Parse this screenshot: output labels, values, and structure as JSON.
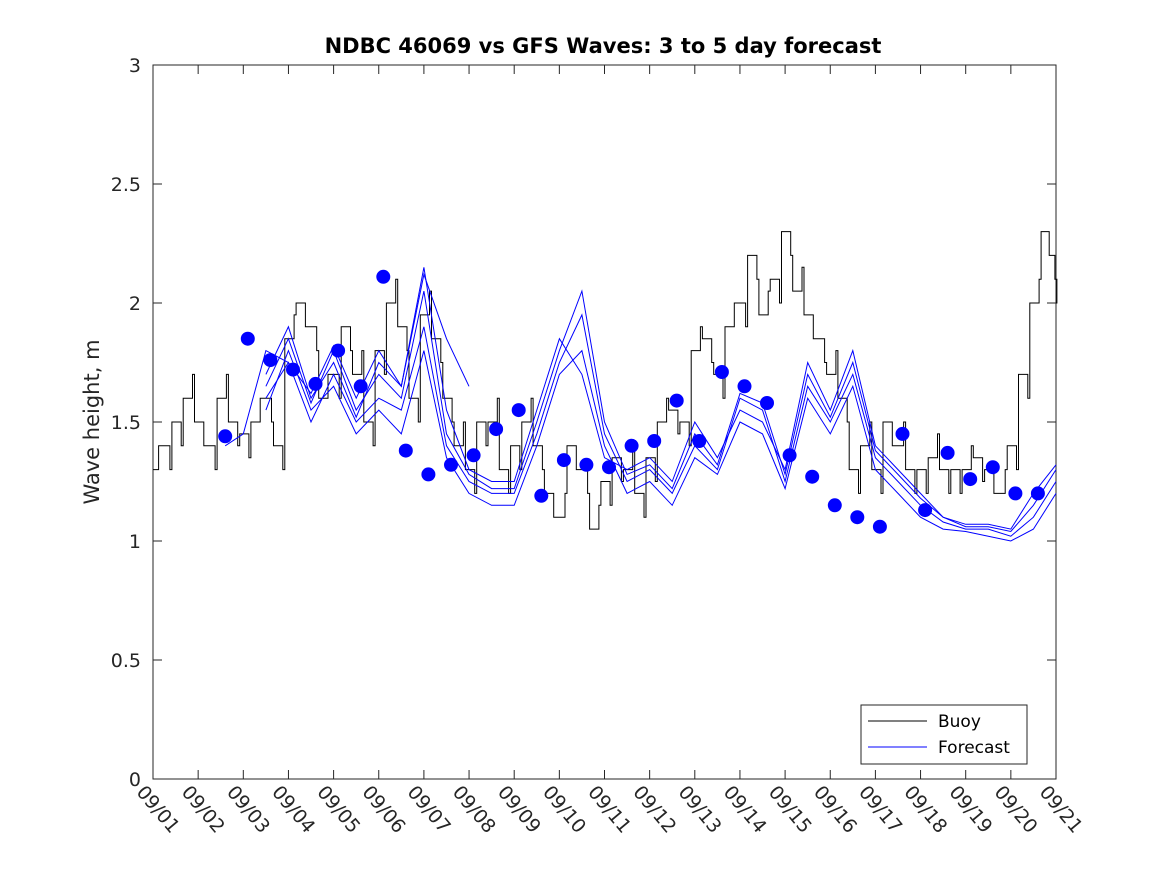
{
  "chart_data": {
    "type": "line",
    "title": "NDBC 46069 vs GFS Waves: 3 to 5 day forecast",
    "xlabel": "",
    "ylabel": "Wave height, m",
    "xlim": [
      0,
      20
    ],
    "ylim": [
      0,
      3
    ],
    "grid": false,
    "x_tick_labels": [
      "09/01",
      "09/02",
      "09/03",
      "09/04",
      "09/05",
      "09/06",
      "09/07",
      "09/08",
      "09/09",
      "09/10",
      "09/11",
      "09/12",
      "09/13",
      "09/14",
      "09/15",
      "09/16",
      "09/17",
      "09/18",
      "09/19",
      "09/20",
      "09/21"
    ],
    "y_ticks": [
      0,
      0.5,
      1,
      1.5,
      2,
      2.5,
      3
    ],
    "y_tick_labels": [
      "0",
      "0.5",
      "1",
      "1.5",
      "2",
      "2.5",
      "3"
    ],
    "legend": {
      "position": "bottom-right",
      "entries": [
        {
          "label": "Buoy"
        },
        {
          "label": "Forecast"
        }
      ]
    },
    "colors": {
      "buoy": "#000000",
      "forecast": "#0000ff",
      "axis": "#262626"
    },
    "series": [
      {
        "name": "Buoy",
        "x": [
          0,
          0.25,
          0.5,
          0.75,
          1,
          1.25,
          1.5,
          1.75,
          2,
          2.25,
          2.5,
          2.75,
          3,
          3.25,
          3.5,
          3.75,
          4,
          4.25,
          4.5,
          4.75,
          5,
          5.25,
          5.5,
          5.75,
          6,
          6.25,
          6.5,
          6.75,
          7,
          7.25,
          7.5,
          7.75,
          8,
          8.25,
          8.5,
          8.75,
          9,
          9.25,
          9.5,
          9.75,
          10,
          10.25,
          10.5,
          10.75,
          11,
          11.25,
          11.5,
          11.75,
          12,
          12.25,
          12.5,
          12.75,
          13,
          13.25,
          13.5,
          13.75,
          14,
          14.25,
          14.5,
          14.75,
          15,
          15.25,
          15.5,
          15.75,
          16,
          16.25,
          16.5,
          16.75,
          17,
          17.25,
          17.5,
          17.75,
          18,
          18.25,
          18.5,
          18.75,
          19,
          19.25,
          19.5,
          19.75,
          19.95,
          20.0
        ],
        "values": [
          1.3,
          1.4,
          1.5,
          1.6,
          1.5,
          1.4,
          1.6,
          1.5,
          1.45,
          1.5,
          1.6,
          1.4,
          1.85,
          2.0,
          1.9,
          1.6,
          1.7,
          1.9,
          1.7,
          1.5,
          1.8,
          2.0,
          1.9,
          1.6,
          1.95,
          1.85,
          1.6,
          1.4,
          1.3,
          1.5,
          1.5,
          1.3,
          1.4,
          1.5,
          1.4,
          1.2,
          1.1,
          1.4,
          1.3,
          1.05,
          1.25,
          1.35,
          1.3,
          1.2,
          1.35,
          1.5,
          1.55,
          1.5,
          1.8,
          1.85,
          1.7,
          1.9,
          2.0,
          2.2,
          1.95,
          2.1,
          2.3,
          2.05,
          1.95,
          1.85,
          1.7,
          1.6,
          1.3,
          1.4,
          1.3,
          1.5,
          1.4,
          1.3,
          1.3,
          1.35,
          1.3,
          1.3,
          1.3,
          1.35,
          1.3,
          1.2,
          1.4,
          1.7,
          2.0,
          2.3,
          2.2,
          2.0
        ]
      },
      {
        "name": "Forecast",
        "runs": [
          {
            "x": [
              1.6,
              2.0,
              2.5,
              3.0,
              3.5,
              4.0,
              4.5,
              5.0,
              5.5,
              6.0,
              6.5,
              7.0
            ],
            "values": [
              1.4,
              1.45,
              1.8,
              1.75,
              1.62,
              1.82,
              1.6,
              1.8,
              1.65,
              2.12,
              1.85,
              1.65
            ]
          },
          {
            "x": [
              2.5,
              3.0,
              3.5,
              4.0,
              4.5,
              5.0,
              5.5,
              6.0,
              6.5,
              7.0,
              7.5,
              8.0,
              8.5,
              9.0,
              9.5,
              10.0,
              10.5,
              11.0,
              11.5,
              12.0,
              12.5,
              13.0,
              13.5,
              14.0,
              14.5,
              15.0,
              15.5,
              16.0,
              16.5,
              17.0,
              17.5,
              18.0,
              18.5,
              19.0,
              19.5,
              20.0
            ],
            "values": [
              1.7,
              1.9,
              1.6,
              1.75,
              1.52,
              1.75,
              1.65,
              2.15,
              1.55,
              1.3,
              1.25,
              1.25,
              1.55,
              1.85,
              1.7,
              1.35,
              1.3,
              1.35,
              1.25,
              1.5,
              1.35,
              1.55,
              1.5,
              1.3,
              1.75,
              1.55,
              1.8,
              1.4,
              1.3,
              1.2,
              1.1,
              1.07,
              1.07,
              1.05,
              1.2,
              1.32
            ]
          },
          {
            "x": [
              2.5,
              3.0,
              3.5,
              4.0,
              4.5,
              5.0,
              5.5,
              6.0,
              6.5,
              7.0,
              7.5,
              8.0,
              8.5,
              9.0,
              9.5,
              10.0,
              10.5,
              11.0,
              11.5,
              12.0,
              12.5,
              13.0,
              13.5,
              14.0,
              14.5,
              15.0,
              15.5,
              16.0,
              16.5,
              17.0,
              17.5,
              18.0,
              18.5,
              19.0,
              19.5,
              20.0
            ],
            "values": [
              1.6,
              1.75,
              1.5,
              1.7,
              1.5,
              1.6,
              1.55,
              1.9,
              1.4,
              1.25,
              1.2,
              1.2,
              1.45,
              1.75,
              1.95,
              1.45,
              1.25,
              1.3,
              1.2,
              1.4,
              1.3,
              1.6,
              1.55,
              1.25,
              1.65,
              1.5,
              1.7,
              1.35,
              1.25,
              1.15,
              1.08,
              1.05,
              1.05,
              1.02,
              1.1,
              1.25
            ]
          },
          {
            "x": [
              2.5,
              3.0,
              3.5,
              4.0,
              4.5,
              5.0,
              5.5,
              6.0,
              6.5,
              7.0,
              7.5,
              8.0,
              8.5,
              9.0,
              9.5,
              10.0,
              10.5,
              11.0,
              11.5,
              12.0,
              12.5,
              13.0,
              13.5,
              14.0,
              14.5,
              15.0,
              15.5,
              16.0,
              16.5,
              17.0,
              17.5,
              18.0,
              18.5,
              19.0,
              19.5,
              20.0
            ],
            "values": [
              1.55,
              1.8,
              1.55,
              1.65,
              1.45,
              1.55,
              1.45,
              1.8,
              1.35,
              1.2,
              1.15,
              1.15,
              1.4,
              1.7,
              1.8,
              1.4,
              1.2,
              1.25,
              1.15,
              1.35,
              1.28,
              1.5,
              1.45,
              1.22,
              1.6,
              1.45,
              1.65,
              1.3,
              1.2,
              1.1,
              1.05,
              1.04,
              1.02,
              1.0,
              1.05,
              1.2
            ]
          },
          {
            "x": [
              2.5,
              3.0,
              3.5,
              4.0,
              4.5,
              5.0,
              5.5,
              6.0,
              6.5,
              7.0,
              7.5,
              8.0,
              8.5,
              9.0,
              9.5,
              10.0,
              10.5,
              11.0,
              11.5,
              12.0,
              12.5,
              13.0,
              13.5,
              14.0,
              14.5,
              15.0,
              15.5,
              16.0,
              16.5,
              17.0,
              17.5,
              18.0,
              18.5,
              19.0,
              19.5,
              20.0
            ],
            "values": [
              1.65,
              1.85,
              1.58,
              1.8,
              1.55,
              1.7,
              1.6,
              2.05,
              1.45,
              1.28,
              1.22,
              1.22,
              1.5,
              1.8,
              2.05,
              1.5,
              1.28,
              1.32,
              1.22,
              1.45,
              1.32,
              1.62,
              1.58,
              1.28,
              1.7,
              1.52,
              1.75,
              1.38,
              1.28,
              1.18,
              1.1,
              1.06,
              1.06,
              1.04,
              1.15,
              1.3
            ]
          }
        ],
        "markers": {
          "x": [
            1.6,
            2.1,
            2.6,
            3.1,
            3.6,
            4.1,
            4.6,
            5.1,
            5.6,
            6.1,
            6.6,
            7.1,
            7.6,
            8.1,
            8.6,
            9.1,
            9.6,
            10.1,
            10.6,
            11.1,
            11.6,
            12.1,
            12.6,
            13.1,
            13.6,
            14.1,
            14.6,
            15.1,
            15.6,
            16.1,
            16.6,
            17.1,
            17.6,
            18.1,
            18.6,
            19.1,
            19.6
          ],
          "values": [
            1.44,
            1.85,
            1.76,
            1.72,
            1.66,
            1.8,
            1.65,
            2.11,
            1.38,
            1.28,
            1.32,
            1.36,
            1.47,
            1.55,
            1.19,
            1.34,
            1.32,
            1.31,
            1.4,
            1.42,
            1.59,
            1.42,
            1.71,
            1.65,
            1.58,
            1.36,
            1.27,
            1.15,
            1.1,
            1.06,
            1.45,
            1.13,
            1.37,
            1.26,
            1.31,
            1.2,
            1.2
          ]
        }
      }
    ]
  }
}
